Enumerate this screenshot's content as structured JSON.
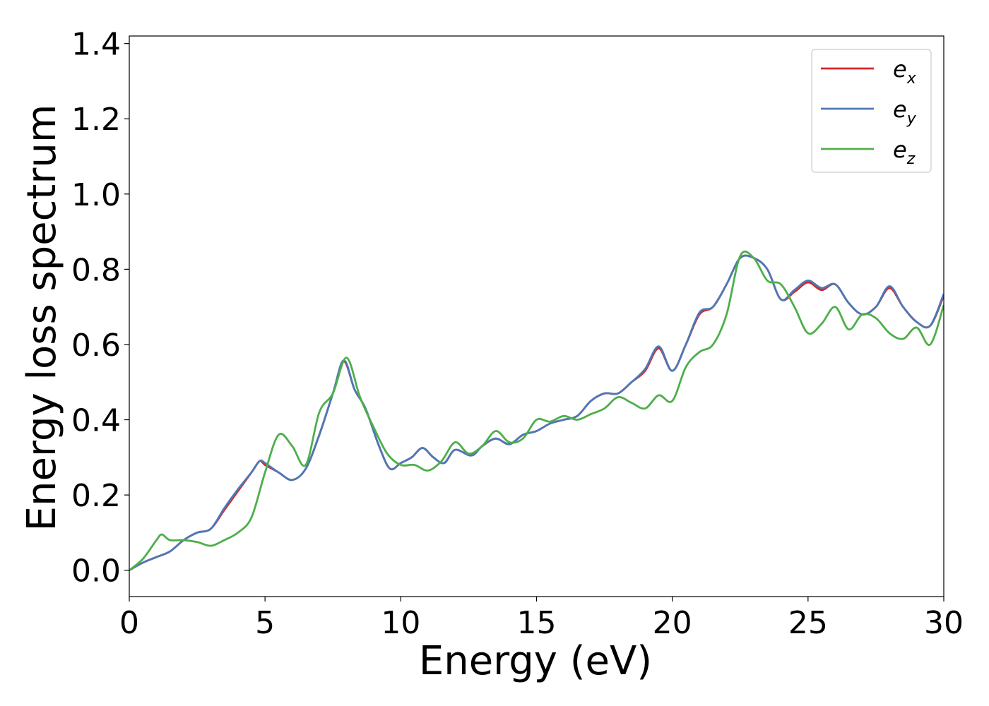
{
  "chart_data": {
    "type": "line",
    "title": "",
    "xlabel": "Energy (eV)",
    "ylabel": "Energy loss spectrum",
    "xlim": [
      0,
      30
    ],
    "ylim": [
      -0.07,
      1.42
    ],
    "xticks": [
      0,
      5,
      10,
      15,
      20,
      25,
      30
    ],
    "xtick_labels": [
      "0",
      "5",
      "10",
      "15",
      "20",
      "25",
      "30"
    ],
    "yticks": [
      0.0,
      0.2,
      0.4,
      0.6,
      0.8,
      1.0,
      1.2,
      1.4
    ],
    "ytick_labels": [
      "0.0",
      "0.2",
      "0.4",
      "0.6",
      "0.8",
      "1.0",
      "1.2",
      "1.4"
    ],
    "grid": false,
    "legend_position": "top-right",
    "series": [
      {
        "name": "e_x",
        "legend_base": "e",
        "legend_sub": "x",
        "color": "#d62728",
        "x": [
          0,
          0.5,
          1,
          1.5,
          2,
          2.5,
          3,
          3.5,
          4,
          4.5,
          4.8,
          5,
          5.5,
          6,
          6.5,
          7,
          7.5,
          7.9,
          8.3,
          8.7,
          9.2,
          9.6,
          10,
          10.4,
          10.8,
          11.2,
          11.6,
          12,
          12.6,
          13,
          13.5,
          14,
          14.5,
          15,
          15.5,
          16,
          16.5,
          17,
          17.5,
          18,
          18.5,
          19,
          19.5,
          20,
          20.5,
          21,
          21.5,
          22,
          22.5,
          23,
          23.5,
          24,
          24.5,
          25,
          25.5,
          26,
          26.5,
          27,
          27.5,
          28,
          28.5,
          29,
          29.5,
          30
        ],
        "y": [
          0.0,
          0.02,
          0.035,
          0.05,
          0.08,
          0.1,
          0.11,
          0.16,
          0.21,
          0.26,
          0.29,
          0.28,
          0.26,
          0.24,
          0.27,
          0.36,
          0.47,
          0.555,
          0.48,
          0.43,
          0.33,
          0.27,
          0.285,
          0.3,
          0.325,
          0.3,
          0.285,
          0.32,
          0.305,
          0.33,
          0.35,
          0.335,
          0.36,
          0.37,
          0.39,
          0.4,
          0.41,
          0.45,
          0.47,
          0.47,
          0.5,
          0.53,
          0.59,
          0.53,
          0.6,
          0.68,
          0.7,
          0.76,
          0.83,
          0.83,
          0.8,
          0.72,
          0.74,
          0.765,
          0.745,
          0.76,
          0.71,
          0.68,
          0.7,
          0.75,
          0.7,
          0.66,
          0.65,
          0.73
        ]
      },
      {
        "name": "e_y",
        "legend_base": "e",
        "legend_sub": "y",
        "color": "#4c78b8",
        "x": [
          0,
          0.5,
          1,
          1.5,
          2,
          2.5,
          3,
          3.5,
          4,
          4.5,
          4.8,
          5,
          5.5,
          6,
          6.5,
          7,
          7.5,
          7.9,
          8.3,
          8.7,
          9.2,
          9.6,
          10,
          10.4,
          10.8,
          11.2,
          11.6,
          12,
          12.6,
          13,
          13.5,
          14,
          14.5,
          15,
          15.5,
          16,
          16.5,
          17,
          17.5,
          18,
          18.5,
          19,
          19.5,
          20,
          20.5,
          21,
          21.5,
          22,
          22.5,
          23,
          23.5,
          24,
          24.5,
          25,
          25.5,
          26,
          26.5,
          27,
          27.5,
          28,
          28.5,
          29,
          29.5,
          30
        ],
        "y": [
          0.0,
          0.02,
          0.035,
          0.05,
          0.08,
          0.1,
          0.11,
          0.165,
          0.215,
          0.26,
          0.29,
          0.285,
          0.26,
          0.24,
          0.27,
          0.36,
          0.47,
          0.558,
          0.48,
          0.43,
          0.33,
          0.27,
          0.285,
          0.3,
          0.325,
          0.3,
          0.285,
          0.32,
          0.305,
          0.33,
          0.35,
          0.335,
          0.36,
          0.37,
          0.39,
          0.4,
          0.41,
          0.45,
          0.47,
          0.47,
          0.5,
          0.535,
          0.595,
          0.53,
          0.6,
          0.685,
          0.7,
          0.76,
          0.83,
          0.83,
          0.8,
          0.72,
          0.745,
          0.77,
          0.75,
          0.76,
          0.71,
          0.68,
          0.7,
          0.755,
          0.7,
          0.66,
          0.65,
          0.735
        ]
      },
      {
        "name": "e_z",
        "legend_base": "e",
        "legend_sub": "z",
        "color": "#4daf4a",
        "x": [
          0,
          0.5,
          1,
          1.2,
          1.5,
          2,
          2.5,
          3,
          3.5,
          4,
          4.5,
          5,
          5.5,
          6,
          6.5,
          7,
          7.5,
          8,
          8.5,
          9,
          9.5,
          10,
          10.5,
          11,
          11.5,
          12,
          12.5,
          13,
          13.5,
          14,
          14.5,
          15,
          15.5,
          16,
          16.5,
          17,
          17.5,
          18,
          18.5,
          19,
          19.5,
          20,
          20.5,
          21,
          21.5,
          22,
          22.5,
          23,
          23.5,
          24,
          24.5,
          25,
          25.5,
          26,
          26.5,
          27,
          27.5,
          28,
          28.5,
          29,
          29.5,
          30
        ],
        "y": [
          0.0,
          0.03,
          0.08,
          0.095,
          0.08,
          0.08,
          0.075,
          0.065,
          0.08,
          0.1,
          0.14,
          0.26,
          0.36,
          0.33,
          0.28,
          0.42,
          0.47,
          0.565,
          0.46,
          0.38,
          0.31,
          0.28,
          0.28,
          0.265,
          0.29,
          0.34,
          0.31,
          0.33,
          0.37,
          0.34,
          0.35,
          0.4,
          0.395,
          0.41,
          0.4,
          0.415,
          0.43,
          0.46,
          0.445,
          0.43,
          0.465,
          0.45,
          0.54,
          0.58,
          0.6,
          0.68,
          0.835,
          0.83,
          0.77,
          0.76,
          0.7,
          0.63,
          0.655,
          0.7,
          0.64,
          0.68,
          0.67,
          0.63,
          0.615,
          0.645,
          0.6,
          0.705
        ]
      }
    ]
  }
}
